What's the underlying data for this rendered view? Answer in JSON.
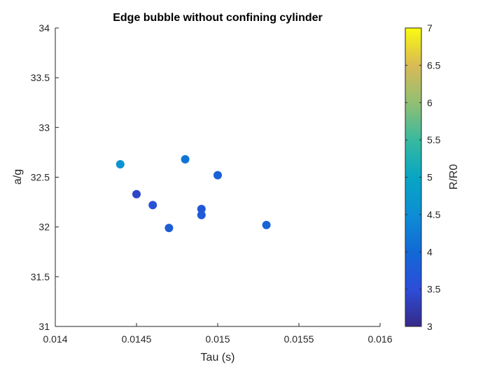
{
  "chart_data": {
    "type": "scatter",
    "title": "Edge bubble without confining cylinder",
    "xlabel": "Tau (s)",
    "ylabel": "a/g",
    "xlim": [
      0.014,
      0.016
    ],
    "ylim": [
      31,
      34
    ],
    "x_ticks": [
      "0.014",
      "0.0145",
      "0.015",
      "0.0155",
      "0.016"
    ],
    "y_ticks": [
      "31",
      "31.5",
      "32",
      "32.5",
      "33",
      "33.5",
      "34"
    ],
    "points": [
      {
        "x": 0.0144,
        "y": 32.63,
        "c": 4.6
      },
      {
        "x": 0.0145,
        "y": 32.33,
        "c": 3.4
      },
      {
        "x": 0.0146,
        "y": 32.22,
        "c": 3.6
      },
      {
        "x": 0.0147,
        "y": 31.99,
        "c": 3.8
      },
      {
        "x": 0.0148,
        "y": 32.68,
        "c": 4.15
      },
      {
        "x": 0.0149,
        "y": 32.18,
        "c": 3.7
      },
      {
        "x": 0.0149,
        "y": 32.12,
        "c": 3.75
      },
      {
        "x": 0.015,
        "y": 32.52,
        "c": 3.85
      },
      {
        "x": 0.0153,
        "y": 32.02,
        "c": 3.9
      }
    ],
    "colorbar": {
      "label": "R/R0",
      "limits": [
        3,
        7
      ],
      "ticks": [
        "3",
        "3.5",
        "4",
        "4.5",
        "5",
        "5.5",
        "6",
        "6.5",
        "7"
      ],
      "colormap": "parula"
    },
    "grid": false
  }
}
